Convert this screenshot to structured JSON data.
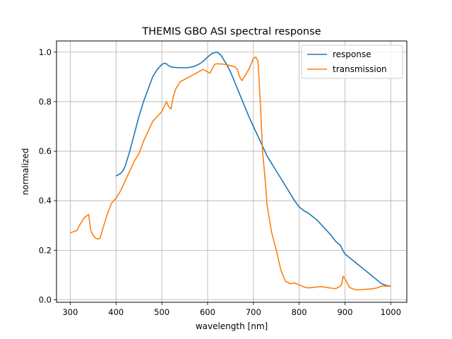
{
  "chart_data": {
    "type": "line",
    "title": "THEMIS GBO ASI spectral response",
    "xlabel": "wavelength [nm]",
    "ylabel": "normalized",
    "xlim": [
      270,
      1035
    ],
    "ylim": [
      -0.01,
      1.045
    ],
    "xticks": [
      300,
      400,
      500,
      600,
      700,
      800,
      900,
      1000
    ],
    "yticks": [
      0.0,
      0.2,
      0.4,
      0.6,
      0.8,
      1.0
    ],
    "xtick_labels": [
      "300",
      "400",
      "500",
      "600",
      "700",
      "800",
      "900",
      "1000"
    ],
    "ytick_labels": [
      "0.0",
      "0.2",
      "0.4",
      "0.6",
      "0.8",
      "1.0"
    ],
    "grid": true,
    "legend_position": "top-right",
    "series": [
      {
        "name": "response",
        "color": "#1f77b4",
        "x": [
          400,
          410,
          415,
          420,
          425,
          430,
          440,
          450,
          460,
          470,
          480,
          490,
          500,
          505,
          510,
          515,
          520,
          530,
          540,
          550,
          560,
          570,
          580,
          590,
          600,
          610,
          620,
          625,
          630,
          640,
          650,
          660,
          670,
          680,
          690,
          700,
          710,
          720,
          730,
          740,
          750,
          760,
          770,
          780,
          790,
          800,
          810,
          820,
          830,
          840,
          850,
          860,
          870,
          880,
          890,
          895,
          900,
          910,
          920,
          930,
          940,
          950,
          960,
          970,
          980,
          990,
          1000
        ],
        "y": [
          0.5,
          0.51,
          0.52,
          0.54,
          0.57,
          0.6,
          0.67,
          0.74,
          0.8,
          0.85,
          0.9,
          0.93,
          0.95,
          0.955,
          0.953,
          0.945,
          0.94,
          0.938,
          0.937,
          0.937,
          0.938,
          0.942,
          0.95,
          0.962,
          0.98,
          0.995,
          1.0,
          0.995,
          0.985,
          0.955,
          0.92,
          0.875,
          0.83,
          0.785,
          0.74,
          0.7,
          0.66,
          0.62,
          0.58,
          0.55,
          0.52,
          0.49,
          0.46,
          0.43,
          0.4,
          0.375,
          0.36,
          0.35,
          0.335,
          0.32,
          0.3,
          0.28,
          0.26,
          0.235,
          0.22,
          0.2,
          0.185,
          0.17,
          0.155,
          0.14,
          0.125,
          0.11,
          0.095,
          0.08,
          0.065,
          0.058,
          0.055
        ]
      },
      {
        "name": "transmission",
        "color": "#ff7f0e",
        "x": [
          300,
          315,
          320,
          330,
          340,
          345,
          350,
          355,
          360,
          365,
          370,
          380,
          390,
          400,
          410,
          420,
          430,
          440,
          450,
          460,
          470,
          475,
          480,
          490,
          500,
          505,
          510,
          515,
          520,
          525,
          530,
          540,
          550,
          560,
          570,
          580,
          590,
          600,
          605,
          615,
          620,
          630,
          640,
          650,
          660,
          665,
          670,
          675,
          680,
          690,
          700,
          705,
          710,
          715,
          720,
          725,
          730,
          740,
          750,
          760,
          770,
          780,
          790,
          800,
          810,
          820,
          830,
          840,
          850,
          860,
          870,
          880,
          890,
          893,
          896,
          900,
          910,
          920,
          930,
          940,
          950,
          960,
          970,
          980,
          990,
          1000
        ],
        "y": [
          0.27,
          0.28,
          0.3,
          0.33,
          0.345,
          0.28,
          0.26,
          0.25,
          0.245,
          0.248,
          0.28,
          0.34,
          0.39,
          0.41,
          0.44,
          0.48,
          0.52,
          0.56,
          0.59,
          0.64,
          0.68,
          0.7,
          0.72,
          0.74,
          0.76,
          0.78,
          0.8,
          0.78,
          0.77,
          0.82,
          0.85,
          0.88,
          0.89,
          0.9,
          0.91,
          0.92,
          0.93,
          0.92,
          0.915,
          0.95,
          0.953,
          0.952,
          0.95,
          0.945,
          0.94,
          0.93,
          0.9,
          0.885,
          0.9,
          0.93,
          0.975,
          0.98,
          0.965,
          0.8,
          0.6,
          0.5,
          0.38,
          0.27,
          0.2,
          0.12,
          0.075,
          0.065,
          0.068,
          0.06,
          0.052,
          0.048,
          0.05,
          0.052,
          0.053,
          0.05,
          0.047,
          0.045,
          0.055,
          0.065,
          0.095,
          0.085,
          0.05,
          0.042,
          0.04,
          0.042,
          0.043,
          0.044,
          0.048,
          0.055,
          0.055,
          0.055
        ]
      }
    ]
  }
}
